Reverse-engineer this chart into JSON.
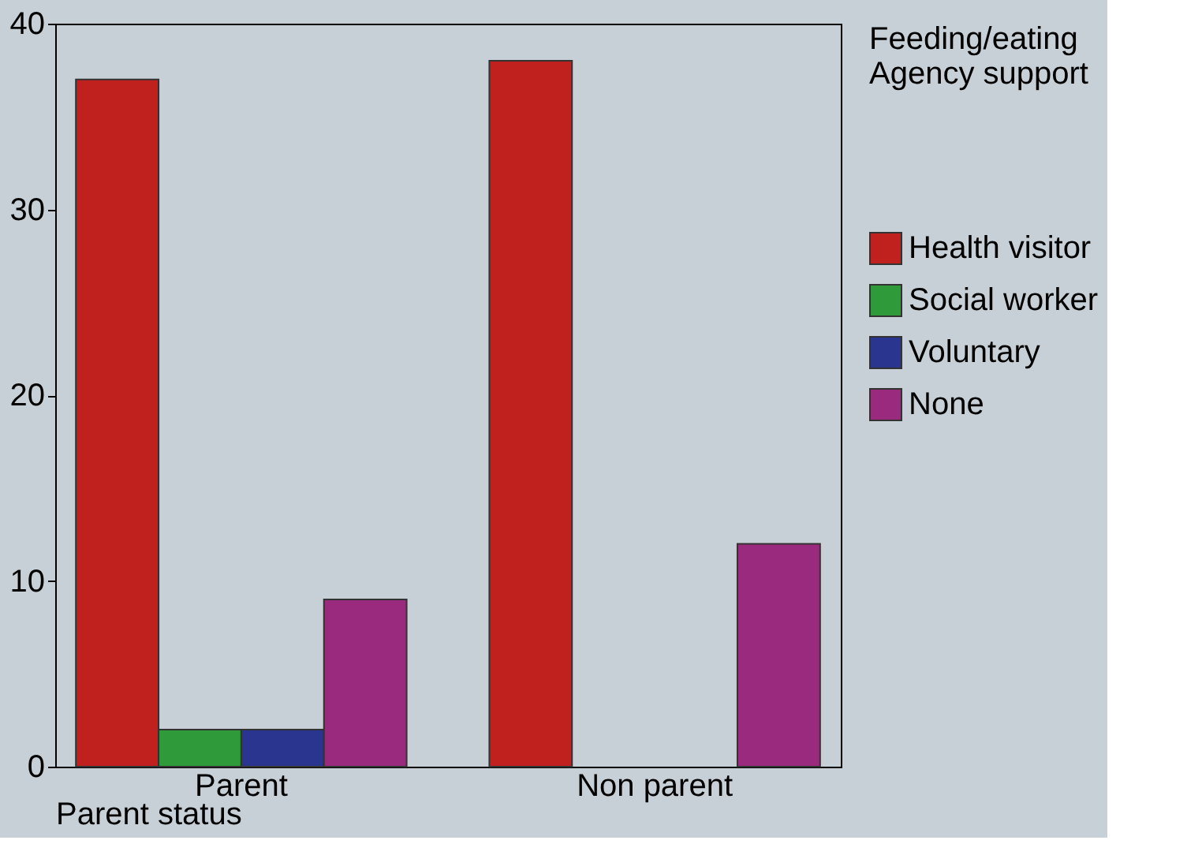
{
  "chart_data": {
    "type": "bar",
    "xlabel": "Parent status",
    "legend_title": "Feeding/eating\nAgency support",
    "categories": [
      "Parent",
      "Non parent"
    ],
    "series": [
      {
        "name": "Health visitor",
        "color": "#c0201e",
        "values": [
          37,
          38
        ]
      },
      {
        "name": "Social worker",
        "color": "#2f9a3a",
        "values": [
          2,
          0
        ]
      },
      {
        "name": "Voluntary",
        "color": "#2a3590",
        "values": [
          2,
          0
        ]
      },
      {
        "name": "None",
        "color": "#9a2a7e",
        "values": [
          9,
          12
        ]
      }
    ],
    "ylim": [
      0,
      40
    ],
    "yticks": [
      0,
      10,
      20,
      30,
      40
    ],
    "grid": false,
    "legend": "right"
  }
}
